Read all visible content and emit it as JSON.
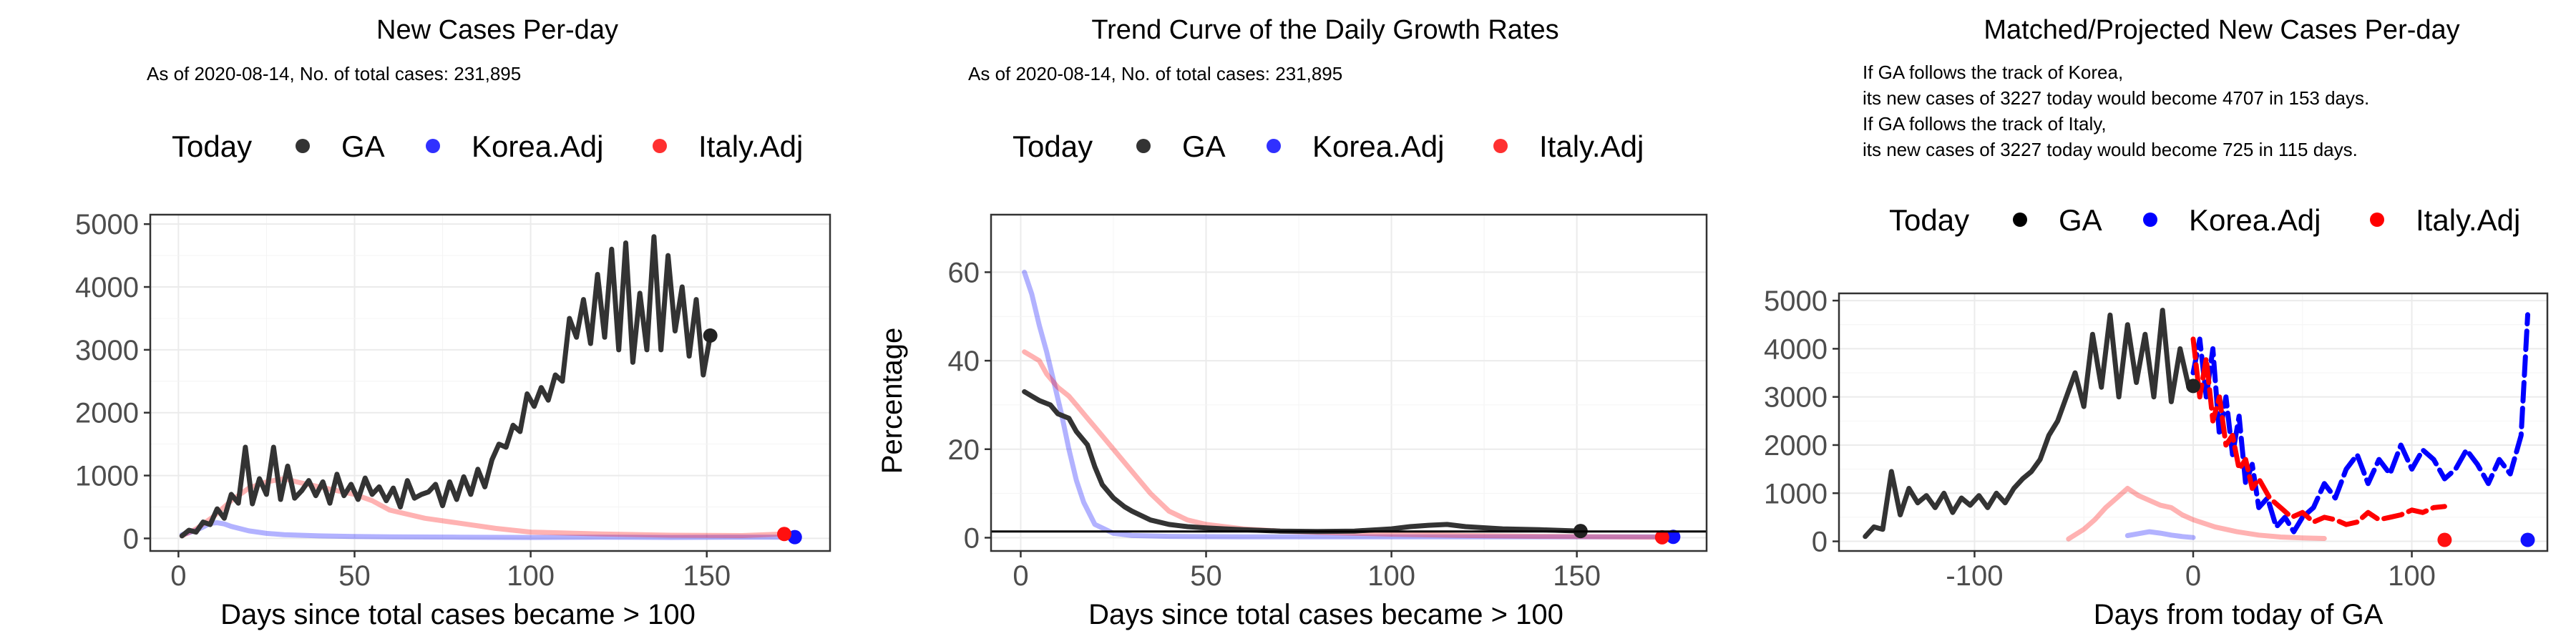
{
  "panels": [
    {
      "title": "New Cases Per-day",
      "subtitle_lines": [
        "As of 2020-08-14, No. of total cases: 231,895"
      ],
      "legend": {
        "title": "Today",
        "items": [
          {
            "label": "GA",
            "color": "#000000"
          },
          {
            "label": "Korea.Adj",
            "color": "#0000ff"
          },
          {
            "label": "Italy.Adj",
            "color": "#ff0000"
          }
        ]
      },
      "xlabel": "Days since total cases became > 100",
      "ylabel": ""
    },
    {
      "title": "Trend Curve of the Daily Growth Rates",
      "subtitle_lines": [
        "As of 2020-08-14, No. of total cases: 231,895"
      ],
      "legend": {
        "title": "Today",
        "items": [
          {
            "label": "GA",
            "color": "#000000"
          },
          {
            "label": "Korea.Adj",
            "color": "#0000ff"
          },
          {
            "label": "Italy.Adj",
            "color": "#ff0000"
          }
        ]
      },
      "xlabel": "Days since total cases became > 100",
      "ylabel": "Percentage"
    },
    {
      "title": "Matched/Projected New Cases Per-day",
      "subtitle_lines": [
        "If GA follows the track of Korea,",
        "its new cases of 3227 today would become 4707 in 153 days.",
        "If GA follows the track of Italy,",
        "its new cases of 3227 today would become 725 in 115 days."
      ],
      "legend": {
        "title": "Today",
        "items": [
          {
            "label": "GA",
            "color": "#000000"
          },
          {
            "label": "Korea.Adj",
            "color": "#0000ff"
          },
          {
            "label": "Italy.Adj",
            "color": "#ff0000"
          }
        ]
      },
      "xlabel": "Days from today of GA",
      "ylabel": ""
    }
  ],
  "chart_data": [
    {
      "type": "line",
      "title": "New Cases Per-day",
      "xlabel": "Days since total cases became > 100",
      "ylabel": "",
      "xlim": [
        -8,
        185
      ],
      "ylim": [
        -200,
        5150
      ],
      "xticks": [
        0,
        50,
        100,
        150
      ],
      "yticks": [
        0,
        1000,
        2000,
        3000,
        4000,
        5000
      ],
      "grid": true,
      "legend_position": "top",
      "series": [
        {
          "name": "GA",
          "color": "#333333",
          "opacity": 1.0,
          "x": [
            1,
            3,
            5,
            7,
            9,
            11,
            13,
            15,
            17,
            19,
            21,
            23,
            25,
            27,
            29,
            31,
            33,
            35,
            37,
            39,
            41,
            43,
            45,
            47,
            49,
            51,
            53,
            55,
            57,
            59,
            61,
            63,
            65,
            67,
            69,
            71,
            73,
            75,
            77,
            79,
            81,
            83,
            85,
            87,
            89,
            91,
            93,
            95,
            97,
            99,
            101,
            103,
            105,
            107,
            109,
            111,
            113,
            115,
            117,
            119,
            121,
            123,
            125,
            127,
            129,
            131,
            133,
            135,
            137,
            139,
            141,
            143,
            145,
            147,
            149,
            151
          ],
          "y": [
            40,
            130,
            100,
            260,
            220,
            470,
            320,
            700,
            560,
            1450,
            550,
            950,
            700,
            1450,
            620,
            1150,
            640,
            760,
            920,
            680,
            900,
            560,
            1020,
            680,
            860,
            620,
            960,
            700,
            820,
            600,
            800,
            500,
            920,
            640,
            700,
            740,
            860,
            520,
            900,
            620,
            980,
            700,
            1100,
            820,
            1250,
            1500,
            1450,
            1800,
            1700,
            2300,
            2100,
            2400,
            2200,
            2600,
            2500,
            3500,
            3200,
            3800,
            3100,
            4200,
            3200,
            4600,
            3000,
            4700,
            2800,
            3900,
            3000,
            4800,
            3000,
            4500,
            3300,
            4000,
            2900,
            3800,
            2600,
            3227
          ]
        },
        {
          "name": "Korea.Adj",
          "color": "#0000ff",
          "opacity": 0.3,
          "x": [
            1,
            3,
            5,
            7,
            9,
            11,
            13,
            15,
            20,
            25,
            30,
            40,
            50,
            60,
            80,
            100,
            120,
            140,
            160,
            175
          ],
          "y": [
            60,
            90,
            130,
            180,
            240,
            250,
            230,
            190,
            120,
            80,
            60,
            40,
            30,
            25,
            20,
            15,
            20,
            15,
            20,
            20
          ]
        },
        {
          "name": "Italy.Adj",
          "color": "#ff0000",
          "opacity": 0.3,
          "x": [
            1,
            5,
            10,
            15,
            20,
            25,
            30,
            35,
            40,
            45,
            50,
            55,
            60,
            70,
            80,
            90,
            100,
            120,
            140,
            160,
            172
          ],
          "y": [
            40,
            150,
            350,
            600,
            800,
            900,
            950,
            880,
            820,
            760,
            700,
            600,
            450,
            320,
            240,
            160,
            100,
            70,
            50,
            45,
            70
          ]
        }
      ],
      "today_points": [
        {
          "name": "GA",
          "x": 151,
          "y": 3227
        },
        {
          "name": "Korea.Adj",
          "x": 175,
          "y": 20
        },
        {
          "name": "Italy.Adj",
          "x": 172,
          "y": 70
        }
      ]
    },
    {
      "type": "line",
      "title": "Trend Curve of the Daily Growth Rates",
      "xlabel": "Days since total cases became > 100",
      "ylabel": "Percentage",
      "xlim": [
        -8,
        185
      ],
      "ylim": [
        -3,
        73
      ],
      "xticks": [
        0,
        50,
        100,
        150
      ],
      "yticks": [
        0,
        20,
        40,
        60
      ],
      "grid": true,
      "legend_position": "top",
      "hline_y": 1.4,
      "series": [
        {
          "name": "GA",
          "color": "#333333",
          "opacity": 1.0,
          "x": [
            1,
            3,
            5,
            8,
            10,
            13,
            15,
            18,
            20,
            22,
            25,
            28,
            30,
            35,
            40,
            45,
            50,
            55,
            60,
            70,
            80,
            90,
            100,
            105,
            110,
            115,
            120,
            130,
            140,
            151
          ],
          "y": [
            33,
            32,
            31,
            30,
            28,
            27,
            24,
            21,
            16,
            12,
            9,
            7,
            6,
            4,
            3,
            2.5,
            2.2,
            2,
            1.8,
            1.5,
            1.4,
            1.5,
            2,
            2.5,
            2.8,
            3,
            2.5,
            2,
            1.8,
            1.5
          ]
        },
        {
          "name": "Korea.Adj",
          "color": "#0000ff",
          "opacity": 0.3,
          "x": [
            1,
            3,
            5,
            7,
            9,
            11,
            13,
            15,
            17,
            20,
            25,
            30,
            40,
            60,
            80,
            100,
            120,
            140,
            160,
            176
          ],
          "y": [
            60,
            55,
            48,
            42,
            35,
            28,
            20,
            13,
            8,
            3,
            1,
            0.5,
            0.3,
            0.2,
            0.2,
            0.2,
            0.2,
            0.2,
            0.2,
            0.2
          ]
        },
        {
          "name": "Italy.Adj",
          "color": "#ff0000",
          "opacity": 0.3,
          "x": [
            1,
            3,
            5,
            7,
            10,
            13,
            15,
            18,
            20,
            25,
            30,
            35,
            40,
            45,
            50,
            60,
            70,
            80,
            100,
            120,
            140,
            160,
            173
          ],
          "y": [
            42,
            41,
            40,
            37,
            34,
            32,
            30,
            27,
            25,
            20,
            15,
            10,
            6,
            4,
            3,
            2,
            1.5,
            1.2,
            0.8,
            0.5,
            0.3,
            0.2,
            0.1
          ]
        }
      ],
      "today_points": [
        {
          "name": "GA",
          "x": 151,
          "y": 1.5
        },
        {
          "name": "Korea.Adj",
          "x": 176,
          "y": 0.2
        },
        {
          "name": "Italy.Adj",
          "x": 173,
          "y": 0.1
        }
      ]
    },
    {
      "type": "line",
      "title": "Matched/Projected New Cases Per-day",
      "xlabel": "Days from today of GA",
      "ylabel": "",
      "xlim": [
        -162,
        162
      ],
      "ylim": [
        -200,
        5150
      ],
      "xticks": [
        -100,
        0,
        100
      ],
      "yticks": [
        0,
        1000,
        2000,
        3000,
        4000,
        5000
      ],
      "grid": true,
      "legend_position": "top",
      "series": [
        {
          "name": "GA",
          "color": "#333333",
          "opacity": 1.0,
          "x": [
            -150,
            -146,
            -142,
            -138,
            -134,
            -130,
            -126,
            -122,
            -118,
            -114,
            -110,
            -106,
            -102,
            -98,
            -94,
            -90,
            -86,
            -82,
            -78,
            -74,
            -70,
            -66,
            -62,
            -58,
            -54,
            -50,
            -46,
            -42,
            -38,
            -34,
            -30,
            -26,
            -22,
            -18,
            -14,
            -10,
            -6,
            -2,
            0
          ],
          "y": [
            100,
            300,
            250,
            1450,
            550,
            1100,
            800,
            950,
            700,
            1000,
            600,
            900,
            750,
            950,
            700,
            1000,
            800,
            1100,
            1300,
            1450,
            1700,
            2200,
            2500,
            3000,
            3500,
            2800,
            4300,
            3200,
            4700,
            3000,
            4500,
            3300,
            4300,
            3000,
            4800,
            2900,
            4000,
            3200,
            3227
          ]
        },
        {
          "name": "Korea.Adj",
          "color": "#0000ff",
          "opacity": 1.0,
          "dashed": true,
          "x": [
            0,
            3,
            6,
            9,
            12,
            15,
            18,
            21,
            24,
            27,
            30,
            34,
            38,
            42,
            46,
            50,
            55,
            60,
            65,
            70,
            75,
            80,
            85,
            90,
            95,
            100,
            105,
            110,
            115,
            120,
            125,
            130,
            135,
            140,
            145,
            150,
            153
          ],
          "y": [
            3500,
            4200,
            3000,
            4000,
            2200,
            3000,
            1800,
            2600,
            1200,
            1600,
            700,
            900,
            300,
            500,
            200,
            500,
            700,
            1200,
            900,
            1500,
            1800,
            1200,
            1700,
            1400,
            2000,
            1500,
            1900,
            1700,
            1300,
            1500,
            1900,
            1600,
            1200,
            1700,
            1400,
            2200,
            4707
          ]
        },
        {
          "name": "Italy.Adj",
          "color": "#ff0000",
          "opacity": 1.0,
          "dashed": true,
          "x": [
            0,
            3,
            6,
            9,
            12,
            15,
            18,
            21,
            24,
            27,
            30,
            35,
            40,
            45,
            50,
            55,
            60,
            65,
            70,
            75,
            80,
            85,
            90,
            95,
            100,
            105,
            110,
            115
          ],
          "y": [
            4200,
            3000,
            3800,
            2500,
            3000,
            2000,
            2200,
            1500,
            1700,
            1100,
            1300,
            900,
            700,
            500,
            600,
            400,
            500,
            450,
            350,
            400,
            600,
            450,
            500,
            550,
            650,
            600,
            700,
            725
          ]
        },
        {
          "name": "Korea.Adj",
          "color": "#0000ff",
          "opacity": 0.3,
          "x": [
            -30,
            -25,
            -20,
            -15,
            -10,
            -5,
            0
          ],
          "y": [
            120,
            160,
            200,
            170,
            130,
            100,
            80
          ]
        },
        {
          "name": "Italy.Adj",
          "color": "#ff0000",
          "opacity": 0.3,
          "x": [
            -57,
            -50,
            -45,
            -40,
            -35,
            -30,
            -25,
            -20,
            -15,
            -10,
            -5,
            0,
            10,
            20,
            30,
            40,
            50,
            60
          ],
          "y": [
            50,
            250,
            450,
            700,
            900,
            1100,
            950,
            850,
            750,
            700,
            550,
            450,
            300,
            200,
            130,
            90,
            70,
            60
          ]
        }
      ],
      "today_points": [
        {
          "name": "GA",
          "x": 0,
          "y": 3227
        },
        {
          "name": "Korea.Adj",
          "x": 153,
          "y": 30
        },
        {
          "name": "Italy.Adj",
          "x": 115,
          "y": 30
        }
      ]
    }
  ]
}
